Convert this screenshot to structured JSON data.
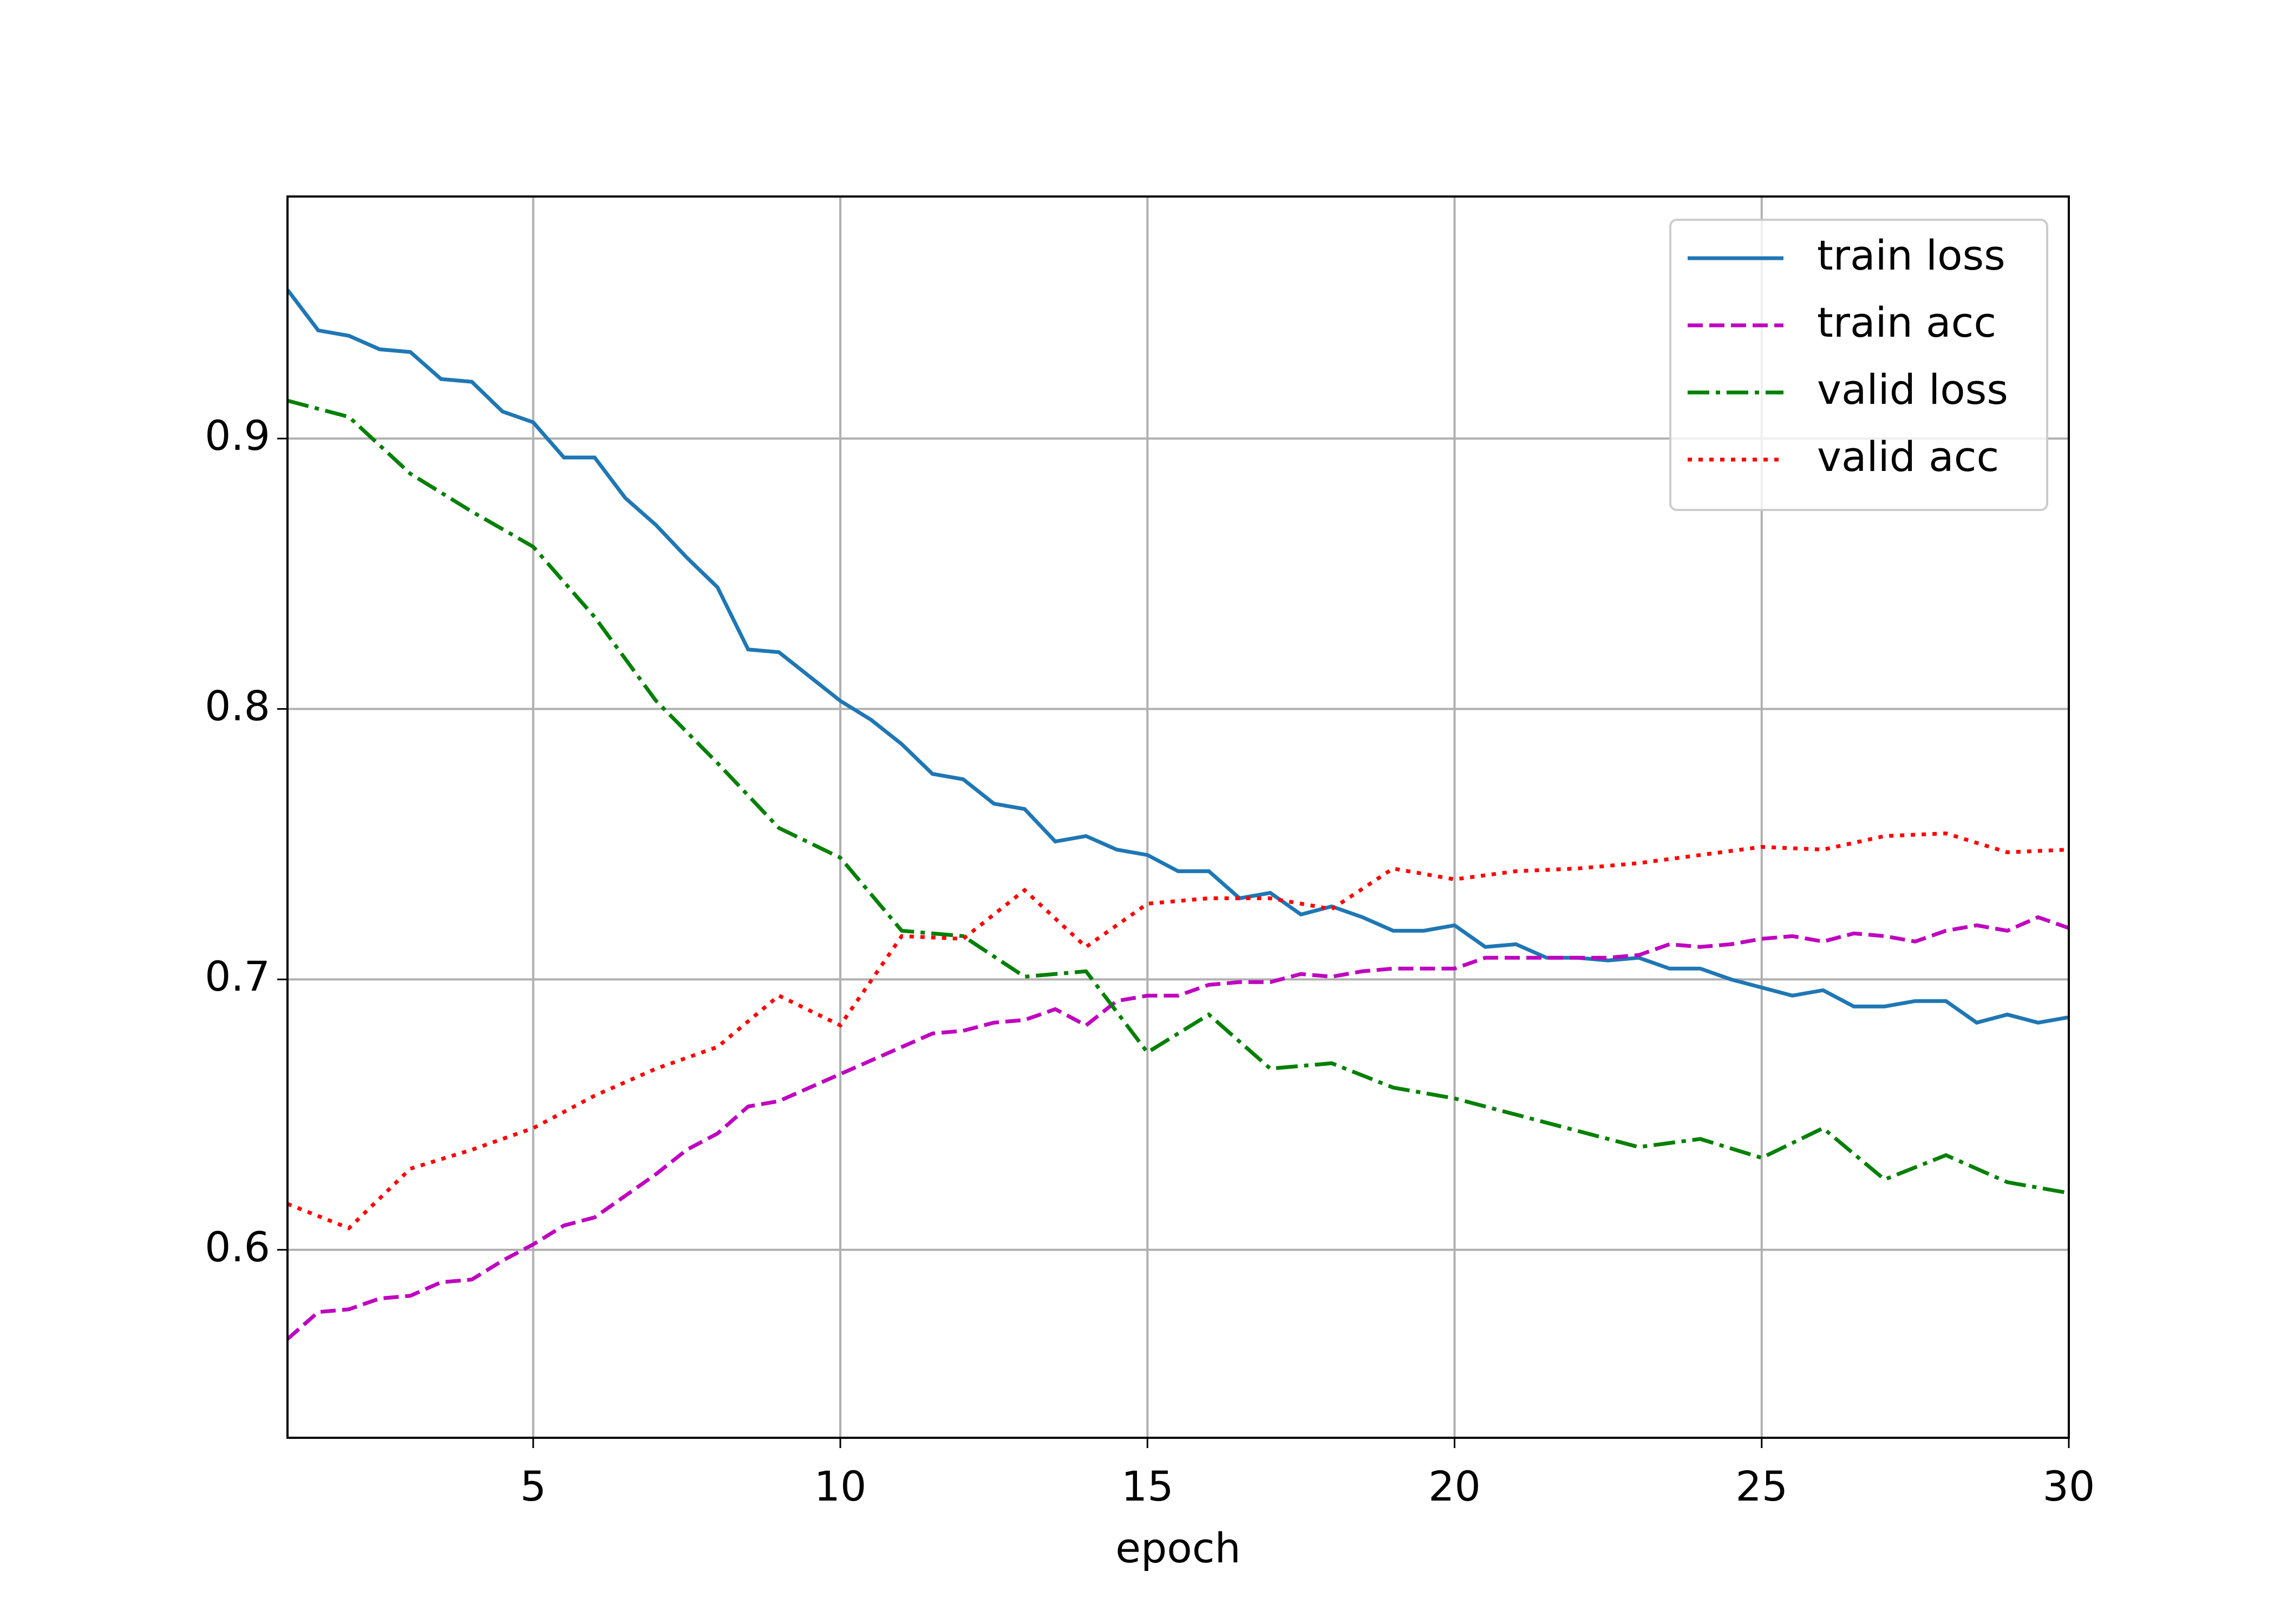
{
  "chart_data": {
    "type": "line",
    "xlabel": "epoch",
    "xlim": [
      1,
      30
    ],
    "xticks": [
      5,
      10,
      15,
      20,
      25,
      30
    ],
    "ylim": [
      0.5305,
      0.9895
    ],
    "yticks": [
      0.6,
      0.7,
      0.8,
      0.9
    ],
    "grid": true,
    "legend": "upper right",
    "series": [
      {
        "name": "train loss",
        "color": "#1f77b4",
        "linestyle": "solid",
        "x": [
          1,
          1.5,
          2,
          2.5,
          3,
          3.5,
          4,
          4.5,
          5,
          5.5,
          6,
          6.5,
          7,
          7.5,
          8,
          8.5,
          9,
          9.5,
          10,
          10.5,
          11,
          11.5,
          12,
          12.5,
          13,
          13.5,
          14,
          14.5,
          15,
          15.5,
          16,
          16.5,
          17,
          17.5,
          18,
          18.5,
          19,
          19.5,
          20,
          20.5,
          21,
          21.5,
          22,
          22.5,
          23,
          23.5,
          24,
          24.5,
          25,
          25.5,
          26,
          26.5,
          27,
          27.5,
          28,
          28.5,
          29,
          29.5,
          30
        ],
        "values": [
          0.955,
          0.94,
          0.938,
          0.933,
          0.932,
          0.922,
          0.921,
          0.91,
          0.906,
          0.893,
          0.893,
          0.878,
          0.868,
          0.856,
          0.845,
          0.822,
          0.821,
          0.812,
          0.803,
          0.796,
          0.787,
          0.776,
          0.774,
          0.765,
          0.763,
          0.751,
          0.753,
          0.748,
          0.746,
          0.74,
          0.74,
          0.73,
          0.732,
          0.724,
          0.727,
          0.723,
          0.718,
          0.718,
          0.72,
          0.712,
          0.713,
          0.708,
          0.708,
          0.707,
          0.708,
          0.704,
          0.704,
          0.7,
          0.697,
          0.694,
          0.696,
          0.69,
          0.69,
          0.692,
          0.692,
          0.684,
          0.687,
          0.684,
          0.686
        ]
      },
      {
        "name": "train acc",
        "color": "#bf00bf",
        "linestyle": "dashed",
        "x": [
          1,
          1.5,
          2,
          2.5,
          3,
          3.5,
          4,
          4.5,
          5,
          5.5,
          6,
          6.5,
          7,
          7.5,
          8,
          8.5,
          9,
          9.5,
          10,
          10.5,
          11,
          11.5,
          12,
          12.5,
          13,
          13.5,
          14,
          14.5,
          15,
          15.5,
          16,
          16.5,
          17,
          17.5,
          18,
          18.5,
          19,
          19.5,
          20,
          20.5,
          21,
          21.5,
          22,
          22.5,
          23,
          23.5,
          24,
          24.5,
          25,
          25.5,
          26,
          26.5,
          27,
          27.5,
          28,
          28.5,
          29,
          29.5,
          30
        ],
        "values": [
          0.567,
          0.577,
          0.578,
          0.582,
          0.583,
          0.588,
          0.589,
          0.596,
          0.602,
          0.609,
          0.612,
          0.62,
          0.628,
          0.637,
          0.643,
          0.653,
          0.655,
          0.66,
          0.665,
          0.67,
          0.675,
          0.68,
          0.681,
          0.684,
          0.685,
          0.689,
          0.683,
          0.692,
          0.694,
          0.694,
          0.698,
          0.699,
          0.699,
          0.702,
          0.701,
          0.703,
          0.704,
          0.704,
          0.704,
          0.708,
          0.708,
          0.708,
          0.708,
          0.708,
          0.709,
          0.713,
          0.712,
          0.713,
          0.715,
          0.716,
          0.714,
          0.717,
          0.716,
          0.714,
          0.718,
          0.72,
          0.718,
          0.723,
          0.719
        ]
      },
      {
        "name": "valid loss",
        "color": "#008000",
        "linestyle": "dashdot",
        "x": [
          1,
          2,
          3,
          4,
          5,
          6,
          7,
          8,
          9,
          10,
          11,
          12,
          13,
          14,
          15,
          16,
          17,
          18,
          19,
          20,
          21,
          22,
          23,
          24,
          25,
          26,
          27,
          28,
          29,
          30
        ],
        "values": [
          0.914,
          0.908,
          0.887,
          0.873,
          0.86,
          0.834,
          0.803,
          0.78,
          0.756,
          0.745,
          0.718,
          0.716,
          0.701,
          0.703,
          0.673,
          0.687,
          0.667,
          0.669,
          0.66,
          0.656,
          0.65,
          0.644,
          0.638,
          0.641,
          0.634,
          0.645,
          0.626,
          0.635,
          0.625,
          0.621
        ]
      },
      {
        "name": "valid acc",
        "color": "#ff0000",
        "linestyle": "dotted",
        "x": [
          1,
          2,
          3,
          4,
          5,
          6,
          7,
          8,
          9,
          10,
          11,
          12,
          13,
          14,
          15,
          16,
          17,
          18,
          19,
          20,
          21,
          22,
          23,
          24,
          25,
          26,
          27,
          28,
          29,
          30
        ],
        "values": [
          0.617,
          0.608,
          0.63,
          0.637,
          0.645,
          0.657,
          0.667,
          0.675,
          0.694,
          0.683,
          0.716,
          0.715,
          0.733,
          0.712,
          0.728,
          0.73,
          0.73,
          0.726,
          0.741,
          0.737,
          0.74,
          0.741,
          0.743,
          0.746,
          0.749,
          0.748,
          0.753,
          0.754,
          0.747,
          0.748
        ]
      }
    ]
  }
}
